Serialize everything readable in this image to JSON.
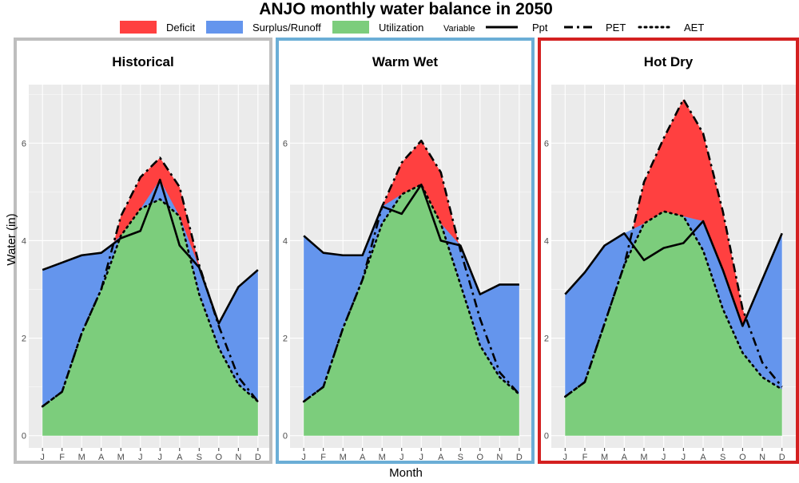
{
  "chart_data": {
    "type": "area",
    "title": "ANJO monthly water balance in 2050",
    "xlabel": "Month",
    "ylabel": "Water (in)",
    "ylim": [
      -0.25,
      7.2
    ],
    "yticks": [
      0,
      2,
      4,
      6
    ],
    "categories": [
      "J",
      "F",
      "M",
      "A",
      "M",
      "J",
      "J",
      "A",
      "S",
      "O",
      "N",
      "D"
    ],
    "fill_legend": [
      {
        "name": "Deficit",
        "color": "#ff4040"
      },
      {
        "name": "Surplus/Runoff",
        "color": "#6495ed"
      },
      {
        "name": "Utilization",
        "color": "#7ccd7c"
      }
    ],
    "line_legend_title": "Variable",
    "line_legend": [
      {
        "name": "Ppt",
        "dash": "solid"
      },
      {
        "name": "PET",
        "dash": "dashdot"
      },
      {
        "name": "AET",
        "dash": "dotted"
      }
    ],
    "grid": true,
    "panels": [
      {
        "title": "Historical",
        "border_color": "#bebebe",
        "series": [
          {
            "name": "Ppt",
            "values": [
              3.4,
              3.55,
              3.7,
              3.75,
              4.05,
              4.2,
              5.25,
              3.9,
              3.45,
              2.3,
              3.05,
              3.4
            ]
          },
          {
            "name": "PET",
            "values": [
              0.6,
              0.9,
              2.1,
              3.0,
              4.5,
              5.3,
              5.7,
              5.1,
              3.5,
              2.25,
              1.2,
              0.7
            ]
          },
          {
            "name": "AET",
            "values": [
              0.6,
              0.9,
              2.1,
              3.0,
              4.1,
              4.65,
              4.85,
              4.5,
              2.9,
              1.8,
              1.05,
              0.7
            ]
          }
        ]
      },
      {
        "title": "Warm Wet",
        "border_color": "#6baed6",
        "series": [
          {
            "name": "Ppt",
            "values": [
              4.1,
              3.75,
              3.7,
              3.7,
              4.7,
              4.55,
              5.15,
              4.0,
              3.9,
              2.9,
              3.1,
              3.1
            ]
          },
          {
            "name": "PET",
            "values": [
              0.7,
              1.0,
              2.2,
              3.2,
              4.7,
              5.6,
              6.05,
              5.4,
              3.8,
              2.4,
              1.3,
              0.85
            ]
          },
          {
            "name": "AET",
            "values": [
              0.7,
              1.0,
              2.2,
              3.2,
              4.35,
              4.95,
              5.15,
              4.35,
              3.1,
              1.85,
              1.2,
              0.85
            ]
          }
        ]
      },
      {
        "title": "Hot Dry",
        "border_color": "#d42020",
        "series": [
          {
            "name": "Ppt",
            "values": [
              2.9,
              3.35,
              3.9,
              4.15,
              3.6,
              3.85,
              3.95,
              4.4,
              3.4,
              2.25,
              3.2,
              4.15
            ]
          },
          {
            "name": "PET",
            "values": [
              0.8,
              1.1,
              2.3,
              3.5,
              5.2,
              6.1,
              6.9,
              6.2,
              4.6,
              2.6,
              1.5,
              1.0
            ]
          },
          {
            "name": "AET",
            "values": [
              0.8,
              1.1,
              2.3,
              3.5,
              4.35,
              4.6,
              4.5,
              3.8,
              2.6,
              1.7,
              1.2,
              0.95
            ]
          }
        ]
      }
    ]
  }
}
